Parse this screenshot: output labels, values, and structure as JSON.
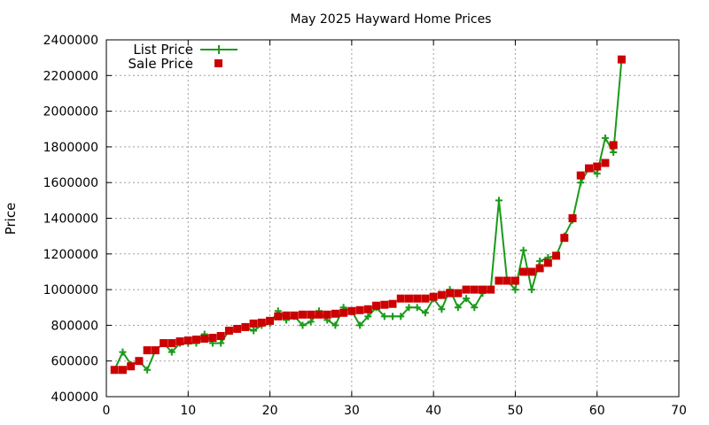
{
  "chart_data": {
    "type": "line",
    "title": "May 2025 Hayward Home Prices",
    "xlabel": "",
    "ylabel": "Price",
    "xlim": [
      0,
      70
    ],
    "ylim": [
      400000,
      2400000
    ],
    "xticks": [
      0,
      10,
      20,
      30,
      40,
      50,
      60,
      70
    ],
    "yticks": [
      400000,
      600000,
      800000,
      1000000,
      1200000,
      1400000,
      1600000,
      1800000,
      2000000,
      2200000,
      2400000
    ],
    "grid": true,
    "legend": "top-left",
    "x": [
      1,
      2,
      3,
      4,
      5,
      6,
      7,
      8,
      9,
      10,
      11,
      12,
      13,
      14,
      15,
      16,
      17,
      18,
      19,
      20,
      21,
      22,
      23,
      24,
      25,
      26,
      27,
      28,
      29,
      30,
      31,
      32,
      33,
      34,
      35,
      36,
      37,
      38,
      39,
      40,
      41,
      42,
      43,
      44,
      45,
      46,
      47,
      48,
      49,
      50,
      51,
      52,
      53,
      54,
      55,
      56,
      57,
      58,
      59,
      60,
      61,
      62,
      63
    ],
    "series": [
      {
        "name": "List Price",
        "style": "line-plus",
        "color": "#1a9a1a",
        "values": [
          550000,
          650000,
          580000,
          600000,
          550000,
          660000,
          700000,
          650000,
          700000,
          700000,
          700000,
          750000,
          700000,
          700000,
          770000,
          780000,
          790000,
          770000,
          800000,
          810000,
          880000,
          830000,
          850000,
          800000,
          820000,
          880000,
          830000,
          800000,
          900000,
          880000,
          800000,
          850000,
          900000,
          850000,
          850000,
          850000,
          900000,
          900000,
          870000,
          950000,
          890000,
          1000000,
          900000,
          950000,
          900000,
          980000,
          1000000,
          1500000,
          1050000,
          1000000,
          1220000,
          1000000,
          1160000,
          1180000,
          1190000,
          1300000,
          1390000,
          1600000,
          1680000,
          1650000,
          1850000,
          1770000,
          2290000
        ]
      },
      {
        "name": "Sale Price",
        "style": "square",
        "color": "#cc0000",
        "values": [
          550000,
          550000,
          570000,
          600000,
          660000,
          660000,
          700000,
          700000,
          710000,
          715000,
          720000,
          725000,
          730000,
          740000,
          770000,
          780000,
          790000,
          810000,
          815000,
          825000,
          850000,
          855000,
          855000,
          860000,
          860000,
          860000,
          860000,
          865000,
          870000,
          880000,
          885000,
          890000,
          910000,
          915000,
          920000,
          950000,
          950000,
          950000,
          950000,
          960000,
          970000,
          980000,
          980000,
          1000000,
          1000000,
          1000000,
          1000000,
          1050000,
          1050000,
          1050000,
          1100000,
          1100000,
          1120000,
          1150000,
          1190000,
          1290000,
          1400000,
          1640000,
          1680000,
          1690000,
          1710000,
          1810000,
          2290000
        ]
      }
    ]
  }
}
